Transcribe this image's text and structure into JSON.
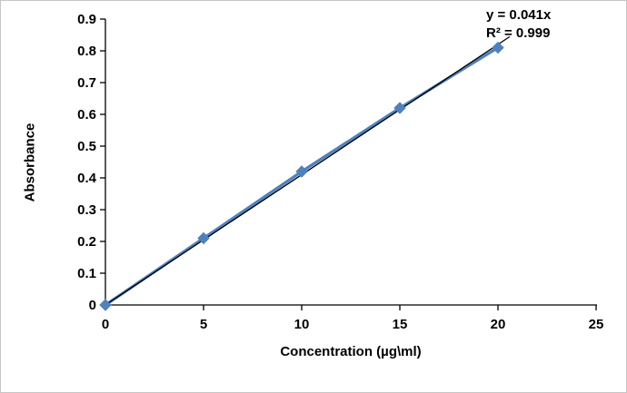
{
  "chart_data": {
    "type": "line",
    "x": [
      0,
      5,
      10,
      15,
      20
    ],
    "series": [
      {
        "name": "Absorbance",
        "values": [
          0,
          0.21,
          0.42,
          0.62,
          0.81
        ]
      }
    ],
    "trendline": {
      "slope": 0.041,
      "label": "y = 0.041x",
      "r2_label": "R² = 0.999"
    },
    "title": "",
    "xlabel": "Concentration (µg\\ml)",
    "ylabel": "Absorbance",
    "xlim": [
      0,
      25
    ],
    "ylim": [
      0,
      0.9
    ],
    "x_ticks": [
      0,
      5,
      10,
      15,
      20,
      25
    ],
    "y_ticks": [
      0,
      0.1,
      0.2,
      0.3,
      0.4,
      0.5,
      0.6,
      0.7,
      0.8,
      0.9
    ],
    "grid": false,
    "legend_position": "none",
    "colors": {
      "series": "#4f81bd",
      "trendline": "#000000",
      "axis": "#000000"
    }
  }
}
